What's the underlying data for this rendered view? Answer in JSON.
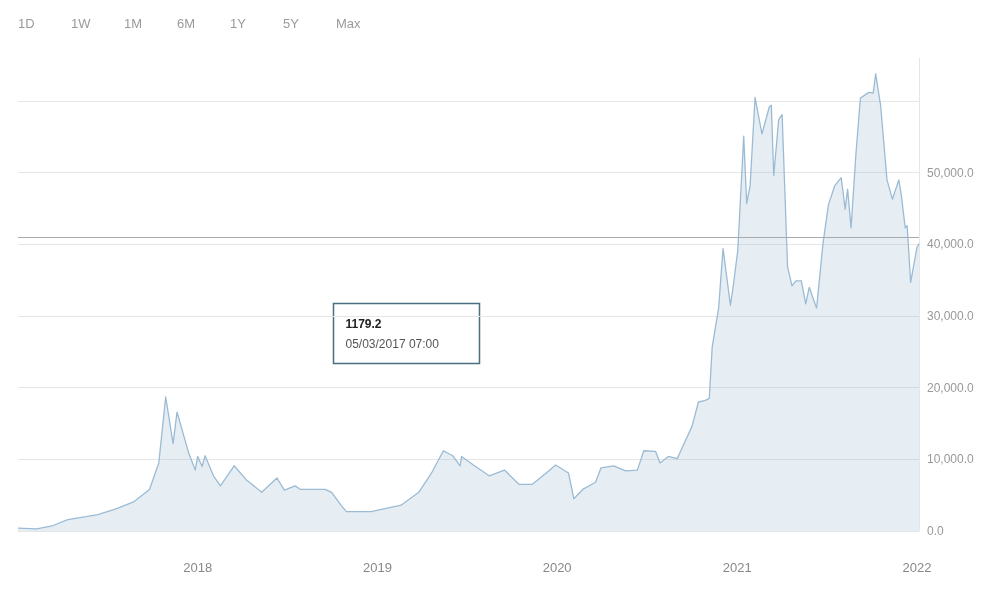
{
  "chart_data": {
    "type": "area",
    "annotations": [
      "1D",
      "1W",
      "1M",
      "6M",
      "1Y",
      "5Y",
      "Max",
      "1179.2",
      "05/03/2017 07:00"
    ],
    "x": [
      "2017-01-01",
      "2017-02-08",
      "2017-03-11",
      "2017-04-12",
      "2017-05-19",
      "2017-06-12",
      "2017-07-19",
      "2017-08-25",
      "2017-09-25",
      "2017-10-14",
      "2017-10-28",
      "2017-11-12",
      "2017-11-20",
      "2017-12-14",
      "2017-12-27",
      "2018-01-01",
      "2018-01-10",
      "2018-01-16",
      "2018-02-02",
      "2018-02-16",
      "2018-03-16",
      "2018-04-09",
      "2018-05-11",
      "2018-06-11",
      "2018-06-26",
      "2018-07-18",
      "2018-07-29",
      "2018-09-17",
      "2018-09-30",
      "2018-10-19",
      "2018-10-30",
      "2018-12-19",
      "2019-02-18",
      "2019-03-26",
      "2019-04-21",
      "2019-05-15",
      "2019-06-03",
      "2019-06-18",
      "2019-06-21",
      "2019-07-15",
      "2019-08-16",
      "2019-09-16",
      "2019-10-16",
      "2019-11-11",
      "2019-12-10",
      "2019-12-29",
      "2020-01-24",
      "2020-02-04",
      "2020-02-22",
      "2020-03-19",
      "2020-03-30",
      "2020-04-25",
      "2020-05-19",
      "2020-06-12",
      "2020-06-25",
      "2020-07-19",
      "2020-07-28",
      "2020-08-14",
      "2020-09-01",
      "2020-09-12",
      "2020-10-01",
      "2020-10-14",
      "2020-10-27",
      "2020-11-05",
      "2020-11-11",
      "2020-11-24",
      "2020-12-03",
      "2020-12-18",
      "2020-12-23",
      "2021-01-02",
      "2021-01-14",
      "2021-01-20",
      "2021-01-27",
      "2021-02-06",
      "2021-02-20",
      "2021-03-07",
      "2021-03-11",
      "2021-03-16",
      "2021-03-26",
      "2021-04-02",
      "2021-04-13",
      "2021-04-22",
      "2021-04-30",
      "2021-05-11",
      "2021-05-20",
      "2021-05-27",
      "2021-06-11",
      "2021-06-24",
      "2021-07-05",
      "2021-07-18",
      "2021-07-31",
      "2021-08-08",
      "2021-08-13",
      "2021-08-20",
      "2021-08-30",
      "2021-09-08",
      "2021-09-25",
      "2021-10-04",
      "2021-10-09",
      "2021-10-19",
      "2021-11-01",
      "2021-11-12",
      "2021-11-25",
      "2021-11-30",
      "2021-12-08",
      "2021-12-12",
      "2021-12-19",
      "2022-01-01",
      "2022-01-05"
    ],
    "series": [
      {
        "color": "#9bbbd4",
        "values": [
          400,
          300,
          700,
          1600,
          2000,
          2300,
          3100,
          4100,
          5800,
          9500,
          18700,
          12200,
          16600,
          10800,
          8500,
          10400,
          9000,
          10500,
          7700,
          6300,
          9100,
          7200,
          5400,
          7400,
          5700,
          6300,
          5800,
          5800,
          5400,
          3600,
          2700,
          2700,
          3600,
          5400,
          8100,
          11200,
          10500,
          9100,
          10400,
          9200,
          7700,
          8500,
          6500,
          6500,
          8100,
          9200,
          8100,
          4500,
          5800,
          6800,
          8800,
          9100,
          8400,
          8500,
          11200,
          11100,
          9500,
          10400,
          10100,
          11800,
          14600,
          18000,
          18200,
          18500,
          25700,
          31100,
          39400,
          31500,
          33800,
          39200,
          55100,
          45700,
          48200,
          60500,
          55400,
          59200,
          59400,
          49600,
          57400,
          58100,
          36900,
          34200,
          34900,
          34900,
          31700,
          34000,
          31100,
          40100,
          45500,
          48200,
          49300,
          44900,
          47700,
          42300,
          52700,
          60400,
          61200,
          61100,
          63800,
          59400,
          49000,
          46300,
          49000,
          46900,
          42300,
          42600,
          34700,
          39600,
          40100
        ]
      }
    ],
    "xlim": [
      "2017-01-01",
      "2022-01-05"
    ],
    "xticks": [
      "2018",
      "2019",
      "2020",
      "2021",
      "2022"
    ],
    "ylim": [
      0,
      66000
    ],
    "yticks": [
      {
        "value": 0,
        "label": "0.0"
      },
      {
        "value": 10000,
        "label": "10,000.0"
      },
      {
        "value": 20000,
        "label": "20,000.0"
      },
      {
        "value": 30000,
        "label": "30,000.0"
      },
      {
        "value": 40000,
        "label": "40,000.0"
      },
      {
        "value": 50000,
        "label": "50,000.0"
      },
      {
        "value": 60000,
        "label": null
      }
    ],
    "ref_lines": [
      {
        "axis": "y",
        "value": 41000,
        "color": "#aaaaaa"
      }
    ],
    "grid": "y",
    "marker": "none",
    "line_style": "solid"
  }
}
